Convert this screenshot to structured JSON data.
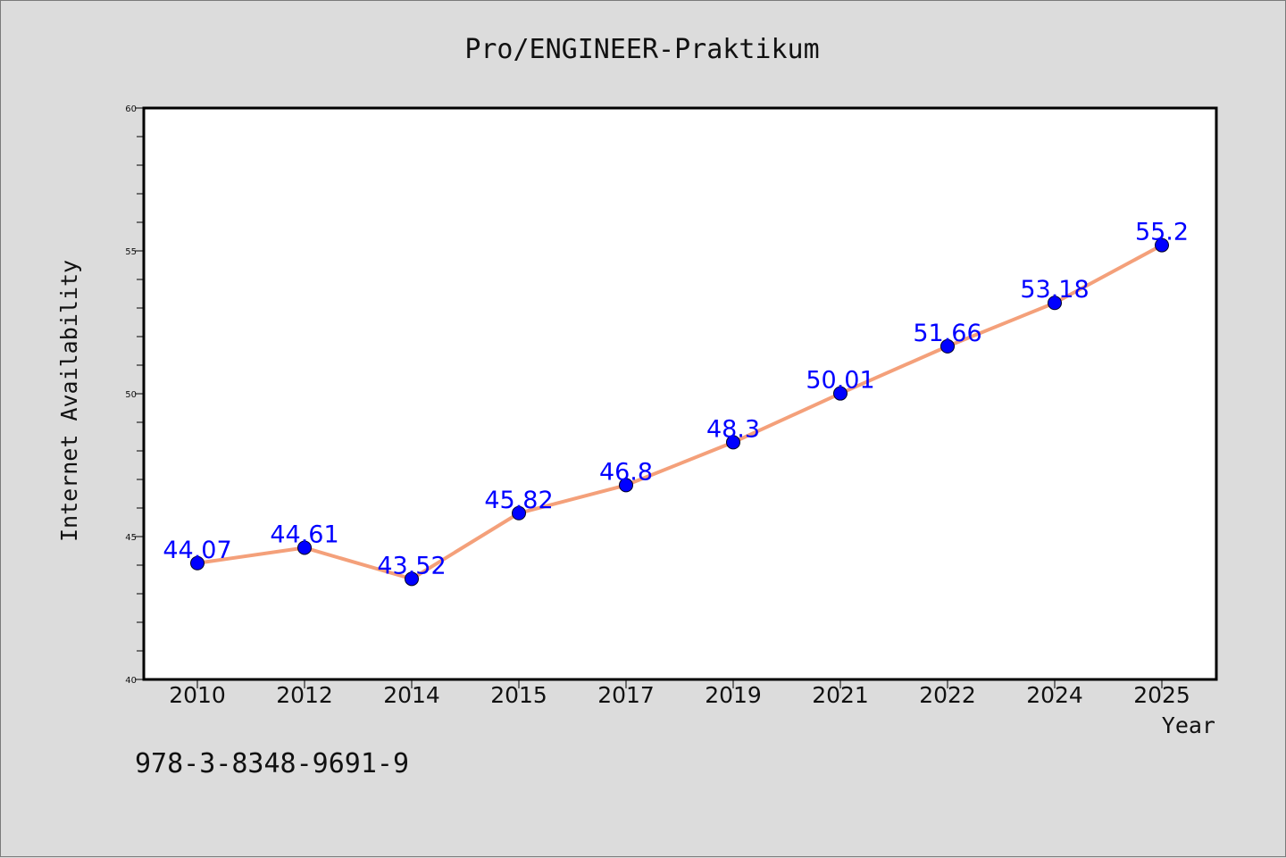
{
  "chart_data": {
    "type": "line",
    "title": "Pro/ENGINEER-Praktikum",
    "xlabel": "Year",
    "ylabel": "Internet Availability",
    "categories": [
      "2010",
      "2012",
      "2014",
      "2015",
      "2017",
      "2019",
      "2021",
      "2022",
      "2024",
      "2025"
    ],
    "series": [
      {
        "values": [
          44.07,
          44.61,
          43.52,
          45.82,
          46.8,
          48.3,
          50.01,
          51.66,
          53.18,
          55.2
        ],
        "data_labels": [
          "44.07",
          "44.61",
          "43.52",
          "45.82",
          "46.8",
          "48.3",
          "50.01",
          "51.66",
          "53.18",
          "55.2"
        ],
        "line_color": "#f4a07a",
        "marker_color": "#0000ff"
      }
    ],
    "ylim": [
      40,
      60
    ],
    "yticks": [
      "40",
      "45",
      "50",
      "55",
      "60"
    ],
    "ytick_values": [
      40,
      45,
      50,
      55,
      60
    ],
    "yminor_step": 1,
    "grid": false,
    "legend": "none",
    "colors": {
      "background": "#dcdcdc",
      "plot_background": "#ffffff",
      "data_label": "#0000ff"
    }
  },
  "footer": {
    "code": "978-3-8348-9691-9"
  }
}
